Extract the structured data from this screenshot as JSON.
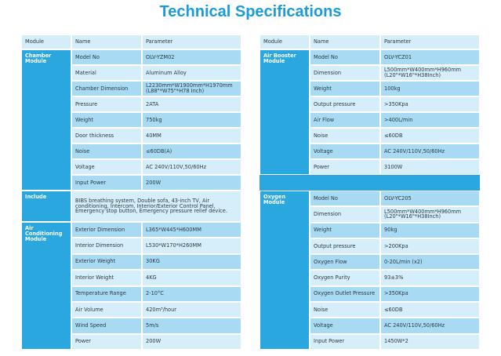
{
  "title": "Technical Specifications",
  "tables": [
    {
      "header": [
        "Module",
        "Name",
        "Parameter"
      ],
      "sections": [
        {
          "module": "Chamber Module",
          "rows": [
            [
              "Model No",
              "OLV-YZM02"
            ],
            [
              "Material",
              "Aluminum Alloy"
            ],
            [
              "Chamber Dimension",
              "L2230mm*W1900mm*H1970mm\n(L88\"*W75\"*H78 Inch)"
            ],
            [
              "Pressure",
              "2ATA"
            ],
            [
              "Weight",
              "750kg"
            ],
            [
              "Door thickness",
              "40MM"
            ],
            [
              "Noise",
              "≤60DB(A)"
            ],
            [
              "Voltage",
              "AC 240V/110V,50/60Hz"
            ],
            [
              "Input Power",
              "200W"
            ]
          ]
        },
        {
          "module": "Include",
          "text": "BIBS breathing system, Double sofa, 43-inch TV, Air conditioning, Intercom, Interior/Exterior Control Panel, Emergency stop button, Emergency pressure relief device."
        },
        {
          "module": "Air Conditioning Module",
          "rows": [
            [
              "Exterior Dimension",
              "L365*W445*H600MM"
            ],
            [
              "Interior Dimension",
              "L530*W170*H260MM"
            ],
            [
              "Exterior Weight",
              "30KG"
            ],
            [
              "Interior Weight",
              "4KG"
            ],
            [
              "Temperature Range",
              "2-10°C"
            ],
            [
              "Air Volume",
              "420m³/hour"
            ],
            [
              "Wind Speed",
              "5m/s"
            ],
            [
              "Power",
              "200W"
            ]
          ]
        }
      ]
    },
    {
      "header": [
        "Module",
        "Name",
        "Parameter"
      ],
      "sections": [
        {
          "module": "Air Booster Module",
          "rows": [
            [
              "Model No",
              "OLV-YCZ01"
            ],
            [
              "Dimension",
              "L500mm*W400mm*H960mm\n(L20\"*W16\"*H38Inch)"
            ],
            [
              "Weight",
              "100kg"
            ],
            [
              "Output pressure",
              ">350Kpa"
            ],
            [
              "Air Flow",
              ">400L/min"
            ],
            [
              "Noise",
              "≤60DB"
            ],
            [
              "Voltage",
              "AC 240V/110V,50/60Hz"
            ],
            [
              "Power",
              "3100W"
            ]
          ]
        },
        {
          "module": "Oxygen Module",
          "rows": [
            [
              "Model No",
              "OLV-YC205"
            ],
            [
              "Dimension",
              "L500mm*W400mm*H960mm\n(L20\"*W16\"*H38Inch)"
            ],
            [
              "Weight",
              "90kg"
            ],
            [
              "Output pressure",
              ">200Kpa"
            ],
            [
              "Oxygen Flow",
              "0-20L/min (x2)"
            ],
            [
              "Oxygen Purity",
              "93±3%"
            ],
            [
              "Oxygen Outlet Pressure",
              ">350Kpa"
            ],
            [
              "Noise",
              "≤60DB"
            ],
            [
              "Voltage",
              "AC 240V/110V,50/60Hz"
            ],
            [
              "Input Power",
              "1450W*2"
            ]
          ]
        }
      ]
    }
  ]
}
